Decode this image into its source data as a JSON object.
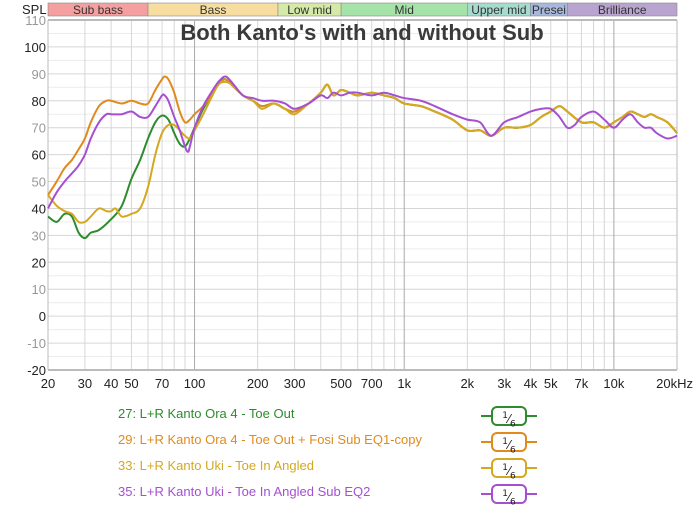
{
  "chart_data": {
    "type": "line",
    "title": "Both Kanto's with and without Sub",
    "ylabel": "SPL",
    "xlabel": "",
    "x_scale": "log",
    "xlim": [
      20,
      20000
    ],
    "ylim": [
      -20,
      110
    ],
    "grid": true,
    "y_ticks": [
      110,
      100,
      90,
      80,
      70,
      60,
      50,
      40,
      30,
      20,
      10,
      0,
      -10,
      -20
    ],
    "x_ticks": [
      {
        "value": 20,
        "label": "20"
      },
      {
        "value": 30,
        "label": "30"
      },
      {
        "value": 40,
        "label": "40"
      },
      {
        "value": 50,
        "label": "50"
      },
      {
        "value": 70,
        "label": "70"
      },
      {
        "value": 100,
        "label": "100"
      },
      {
        "value": 200,
        "label": "200"
      },
      {
        "value": 300,
        "label": "300"
      },
      {
        "value": 500,
        "label": "500"
      },
      {
        "value": 700,
        "label": "700"
      },
      {
        "value": 1000,
        "label": "1k"
      },
      {
        "value": 2000,
        "label": "2k"
      },
      {
        "value": 3000,
        "label": "3k"
      },
      {
        "value": 4000,
        "label": "4k"
      },
      {
        "value": 5000,
        "label": "5k"
      },
      {
        "value": 7000,
        "label": "7k"
      },
      {
        "value": 10000,
        "label": "10k"
      },
      {
        "value": 20000,
        "label": "20kHz"
      }
    ],
    "bands": [
      {
        "name": "Sub bass",
        "from": 20,
        "to": 60,
        "color": "#f4a0a0"
      },
      {
        "name": "Bass",
        "from": 60,
        "to": 250,
        "color": "#f7dea0"
      },
      {
        "name": "Low mid",
        "from": 250,
        "to": 500,
        "color": "#d4eaa6"
      },
      {
        "name": "Mid",
        "from": 500,
        "to": 2000,
        "color": "#a6e3a8"
      },
      {
        "name": "Upper mid",
        "from": 2000,
        "to": 4000,
        "color": "#a6dccf"
      },
      {
        "name": "Presence",
        "label": "Presei",
        "from": 4000,
        "to": 6000,
        "color": "#a8b8dc"
      },
      {
        "name": "Brilliance",
        "from": 6000,
        "to": 20000,
        "color": "#b9a4cf"
      }
    ],
    "legend_position": "bottom",
    "series": [
      {
        "name": "27: L+R Kanto Ora 4 - Toe Out",
        "color": "#2e8b2e",
        "smoothing": "1/6",
        "points": [
          [
            20,
            37
          ],
          [
            22,
            35
          ],
          [
            24,
            38
          ],
          [
            26,
            37
          ],
          [
            28,
            31
          ],
          [
            30,
            29
          ],
          [
            32,
            31
          ],
          [
            35,
            32
          ],
          [
            40,
            36
          ],
          [
            45,
            41
          ],
          [
            50,
            51
          ],
          [
            55,
            58
          ],
          [
            60,
            66
          ],
          [
            65,
            72
          ],
          [
            70,
            74.5
          ],
          [
            75,
            73
          ],
          [
            80,
            68
          ],
          [
            85,
            64
          ],
          [
            90,
            63
          ],
          [
            95,
            66
          ],
          [
            100,
            70
          ],
          [
            110,
            77
          ],
          [
            120,
            82
          ],
          [
            130,
            87
          ],
          [
            140,
            88
          ],
          [
            150,
            86
          ],
          [
            170,
            82
          ],
          [
            190,
            80
          ],
          [
            210,
            78
          ],
          [
            240,
            79
          ],
          [
            270,
            77
          ],
          [
            300,
            76
          ],
          [
            350,
            79
          ],
          [
            400,
            83
          ],
          [
            430,
            86
          ],
          [
            460,
            82
          ],
          [
            500,
            84
          ],
          [
            550,
            83
          ],
          [
            600,
            82
          ],
          [
            700,
            83
          ],
          [
            800,
            82
          ],
          [
            900,
            81
          ],
          [
            1000,
            79
          ],
          [
            1200,
            78
          ],
          [
            1400,
            76
          ],
          [
            1700,
            73
          ],
          [
            2000,
            69
          ],
          [
            2300,
            69
          ],
          [
            2600,
            67
          ],
          [
            3000,
            70
          ],
          [
            3500,
            70
          ],
          [
            4000,
            71
          ],
          [
            4500,
            74
          ],
          [
            5000,
            76
          ],
          [
            5500,
            78
          ],
          [
            6000,
            76
          ],
          [
            7000,
            72
          ],
          [
            8000,
            72
          ],
          [
            9000,
            70
          ],
          [
            10000,
            72
          ],
          [
            11000,
            74
          ],
          [
            12000,
            76
          ],
          [
            13000,
            75
          ],
          [
            14000,
            74
          ],
          [
            15000,
            75
          ],
          [
            16000,
            74
          ],
          [
            18000,
            72
          ],
          [
            20000,
            68
          ]
        ]
      },
      {
        "name": "29: L+R Kanto Ora 4 - Toe Out + Fosi Sub EQ1-copy",
        "color": "#e08a1e",
        "smoothing": "1/6",
        "points": [
          [
            20,
            45
          ],
          [
            22,
            50
          ],
          [
            24,
            55
          ],
          [
            26,
            58
          ],
          [
            28,
            62
          ],
          [
            30,
            66
          ],
          [
            32,
            72
          ],
          [
            35,
            78
          ],
          [
            38,
            80
          ],
          [
            40,
            80
          ],
          [
            45,
            79
          ],
          [
            50,
            80
          ],
          [
            55,
            79
          ],
          [
            60,
            79
          ],
          [
            65,
            84
          ],
          [
            70,
            88
          ],
          [
            72,
            89
          ],
          [
            75,
            88
          ],
          [
            80,
            83
          ],
          [
            85,
            76
          ],
          [
            90,
            72
          ],
          [
            95,
            73
          ],
          [
            100,
            75
          ],
          [
            110,
            78
          ],
          [
            120,
            82
          ],
          [
            130,
            86
          ],
          [
            140,
            88
          ],
          [
            150,
            86
          ],
          [
            170,
            82
          ],
          [
            190,
            80
          ],
          [
            210,
            78
          ],
          [
            240,
            79
          ],
          [
            270,
            77
          ],
          [
            300,
            76
          ],
          [
            350,
            79
          ],
          [
            400,
            83
          ],
          [
            430,
            86
          ],
          [
            460,
            82
          ],
          [
            500,
            84
          ],
          [
            550,
            83
          ],
          [
            600,
            82
          ],
          [
            700,
            83
          ],
          [
            800,
            82
          ],
          [
            900,
            81
          ],
          [
            1000,
            79
          ],
          [
            1200,
            78
          ],
          [
            1400,
            76
          ],
          [
            1700,
            73
          ],
          [
            2000,
            69
          ],
          [
            2300,
            69
          ],
          [
            2600,
            67
          ],
          [
            3000,
            70
          ],
          [
            3500,
            70
          ],
          [
            4000,
            71
          ],
          [
            4500,
            74
          ],
          [
            5000,
            76
          ],
          [
            5500,
            78
          ],
          [
            6000,
            76
          ],
          [
            7000,
            72
          ],
          [
            8000,
            72
          ],
          [
            9000,
            70
          ],
          [
            10000,
            72
          ],
          [
            11000,
            74
          ],
          [
            12000,
            76
          ],
          [
            13000,
            75
          ],
          [
            14000,
            74
          ],
          [
            15000,
            75
          ],
          [
            16000,
            74
          ],
          [
            18000,
            72
          ],
          [
            20000,
            68
          ]
        ]
      },
      {
        "name": "33: L+R Kanto Uki - Toe In Angled",
        "color": "#d4a820",
        "smoothing": "1/6",
        "points": [
          [
            20,
            45
          ],
          [
            22,
            41
          ],
          [
            24,
            39
          ],
          [
            26,
            38
          ],
          [
            28,
            35
          ],
          [
            30,
            35
          ],
          [
            32,
            37
          ],
          [
            35,
            40
          ],
          [
            38,
            39
          ],
          [
            40,
            39
          ],
          [
            42,
            40
          ],
          [
            45,
            37
          ],
          [
            50,
            38
          ],
          [
            55,
            40
          ],
          [
            60,
            48
          ],
          [
            65,
            60
          ],
          [
            70,
            68
          ],
          [
            75,
            71
          ],
          [
            80,
            71
          ],
          [
            85,
            69
          ],
          [
            90,
            67
          ],
          [
            95,
            66
          ],
          [
            100,
            69
          ],
          [
            110,
            75
          ],
          [
            120,
            81
          ],
          [
            130,
            86
          ],
          [
            140,
            87
          ],
          [
            150,
            86
          ],
          [
            170,
            82
          ],
          [
            190,
            80
          ],
          [
            210,
            77
          ],
          [
            240,
            79
          ],
          [
            270,
            77
          ],
          [
            300,
            75
          ],
          [
            350,
            79
          ],
          [
            400,
            83
          ],
          [
            430,
            86
          ],
          [
            460,
            82
          ],
          [
            500,
            84
          ],
          [
            550,
            83
          ],
          [
            600,
            82
          ],
          [
            700,
            83
          ],
          [
            800,
            82
          ],
          [
            900,
            81
          ],
          [
            1000,
            79
          ],
          [
            1200,
            78
          ],
          [
            1400,
            76
          ],
          [
            1700,
            73
          ],
          [
            2000,
            69
          ],
          [
            2300,
            69
          ],
          [
            2600,
            67
          ],
          [
            3000,
            70
          ],
          [
            3500,
            70
          ],
          [
            4000,
            71
          ],
          [
            4500,
            74
          ],
          [
            5000,
            76
          ],
          [
            5500,
            78
          ],
          [
            6000,
            76
          ],
          [
            7000,
            72
          ],
          [
            8000,
            72
          ],
          [
            9000,
            70
          ],
          [
            10000,
            72
          ],
          [
            11000,
            74
          ],
          [
            12000,
            76
          ],
          [
            13000,
            75
          ],
          [
            14000,
            74
          ],
          [
            15000,
            75
          ],
          [
            16000,
            74
          ],
          [
            18000,
            72
          ],
          [
            20000,
            68
          ]
        ]
      },
      {
        "name": "35: L+R Kanto Uki - Toe In Angled Sub EQ2",
        "color": "#a64fd1",
        "smoothing": "1/6",
        "points": [
          [
            20,
            40
          ],
          [
            22,
            46
          ],
          [
            24,
            50
          ],
          [
            26,
            53
          ],
          [
            28,
            56
          ],
          [
            30,
            60
          ],
          [
            32,
            66
          ],
          [
            35,
            72
          ],
          [
            38,
            75
          ],
          [
            40,
            75
          ],
          [
            45,
            75
          ],
          [
            50,
            76
          ],
          [
            55,
            74
          ],
          [
            60,
            74
          ],
          [
            65,
            78
          ],
          [
            70,
            82
          ],
          [
            72,
            82
          ],
          [
            75,
            80
          ],
          [
            80,
            74
          ],
          [
            85,
            69
          ],
          [
            90,
            63
          ],
          [
            93,
            61
          ],
          [
            95,
            63
          ],
          [
            100,
            70
          ],
          [
            110,
            78
          ],
          [
            120,
            83
          ],
          [
            130,
            87
          ],
          [
            140,
            89
          ],
          [
            150,
            87
          ],
          [
            170,
            82
          ],
          [
            190,
            81
          ],
          [
            210,
            80
          ],
          [
            240,
            80
          ],
          [
            270,
            79
          ],
          [
            300,
            77
          ],
          [
            350,
            79
          ],
          [
            400,
            82
          ],
          [
            430,
            81
          ],
          [
            460,
            83
          ],
          [
            500,
            82
          ],
          [
            550,
            83
          ],
          [
            600,
            83
          ],
          [
            700,
            82
          ],
          [
            800,
            83
          ],
          [
            900,
            82
          ],
          [
            1000,
            81
          ],
          [
            1200,
            80
          ],
          [
            1400,
            78
          ],
          [
            1700,
            75
          ],
          [
            2000,
            73
          ],
          [
            2300,
            72
          ],
          [
            2600,
            67
          ],
          [
            3000,
            72
          ],
          [
            3500,
            74
          ],
          [
            4000,
            76
          ],
          [
            4500,
            77
          ],
          [
            5000,
            77
          ],
          [
            5500,
            74
          ],
          [
            6000,
            70
          ],
          [
            6500,
            71
          ],
          [
            7000,
            74
          ],
          [
            8000,
            76
          ],
          [
            9000,
            73
          ],
          [
            10000,
            70
          ],
          [
            11000,
            73
          ],
          [
            12000,
            75
          ],
          [
            13000,
            72
          ],
          [
            14000,
            70
          ],
          [
            15000,
            70
          ],
          [
            16000,
            68
          ],
          [
            18000,
            66
          ],
          [
            20000,
            67
          ]
        ]
      }
    ]
  },
  "legend": {
    "items": [
      {
        "label": "27: L+R Kanto Ora 4 - Toe Out",
        "color": "#2e8b2e",
        "smoothing_num": "1",
        "smoothing_den": "6"
      },
      {
        "label": "29: L+R Kanto Ora 4 - Toe Out + Fosi Sub EQ1-copy",
        "color": "#e08a1e",
        "smoothing_num": "1",
        "smoothing_den": "6"
      },
      {
        "label": "33: L+R Kanto Uki - Toe In Angled",
        "color": "#d4a820",
        "smoothing_num": "1",
        "smoothing_den": "6"
      },
      {
        "label": "35: L+R Kanto Uki - Toe In Angled Sub EQ2",
        "color": "#a64fd1",
        "smoothing_num": "1",
        "smoothing_den": "6"
      }
    ]
  }
}
